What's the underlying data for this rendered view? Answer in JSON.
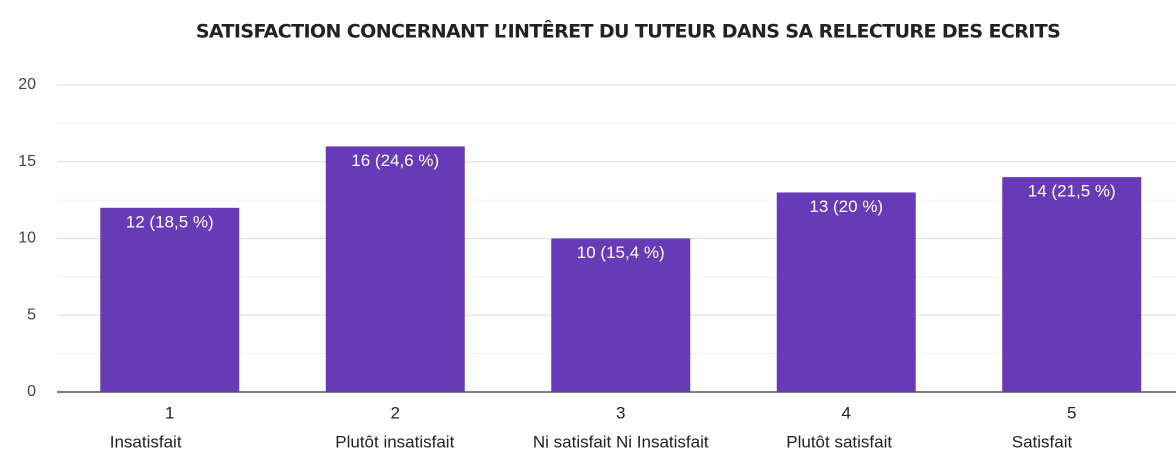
{
  "chart_data": {
    "type": "bar",
    "title": "SATISFACTION CONCERNANT L’INTÊRET DU TUTEUR DANS SA RELECTURE DES ECRITS",
    "categories": [
      "1",
      "2",
      "3",
      "4",
      "5"
    ],
    "category_descriptions": [
      "Insatisfait",
      "Plutôt insatisfait",
      "Ni satisfait Ni Insatisfait",
      "Plutôt satisfait",
      "Satisfait"
    ],
    "values": [
      12,
      16,
      10,
      13,
      14
    ],
    "value_labels": [
      "12 (18,5 %)",
      "16 (24,6 %)",
      "10 (15,4 %)",
      "13 (20 %)",
      "14 (21,5 %)"
    ],
    "color": "#673ab7",
    "ylim": [
      0,
      20
    ],
    "yticks": [
      0,
      5,
      10,
      15,
      20
    ],
    "grid": true
  }
}
